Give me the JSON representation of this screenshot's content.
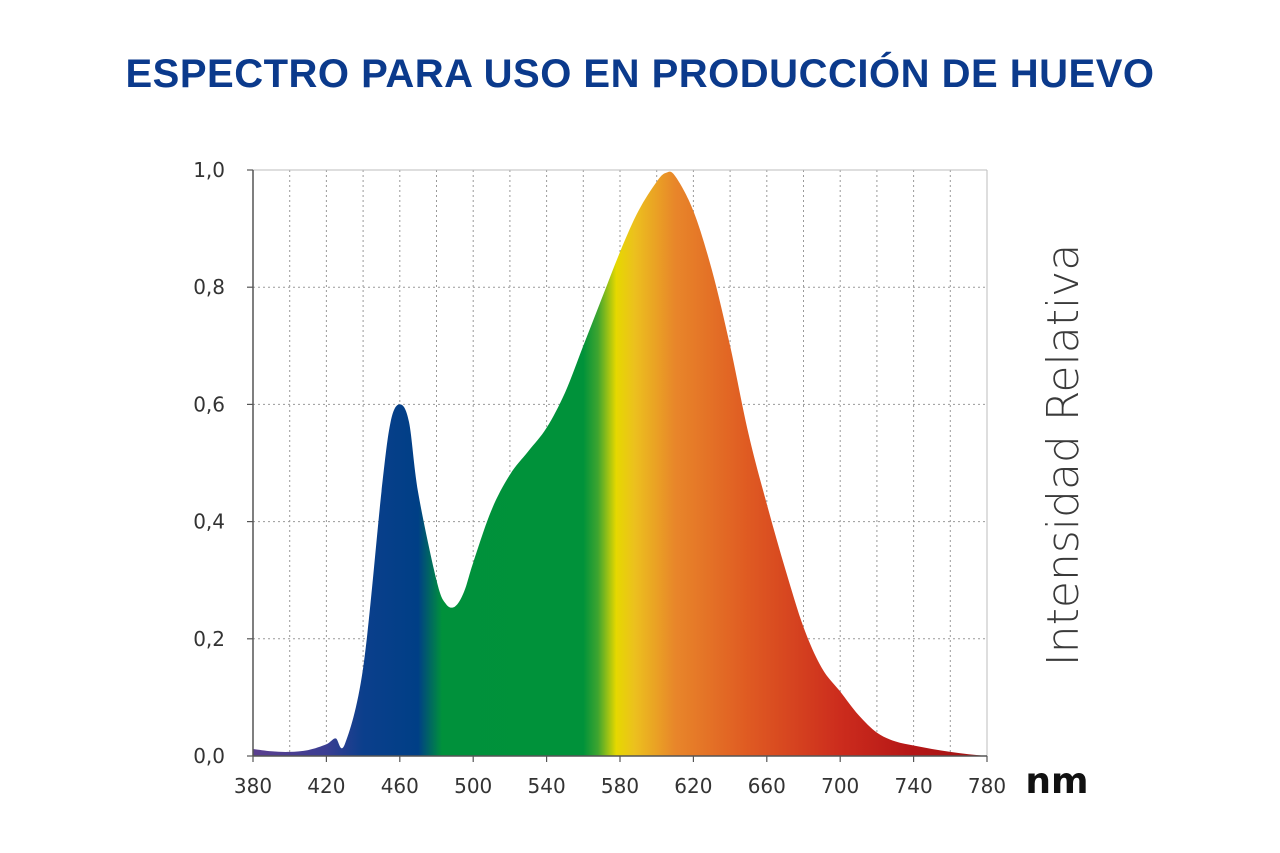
{
  "chart_data": {
    "type": "area",
    "title": "ESPECTRO PARA USO EN PRODUCCIÓN DE HUEVO",
    "xlabel": "nm",
    "ylabel": "Intensidad Relativa",
    "xlim": [
      380,
      780
    ],
    "ylim": [
      0,
      1
    ],
    "x_ticks": [
      "380",
      "420",
      "460",
      "500",
      "540",
      "580",
      "620",
      "660",
      "700",
      "740",
      "780"
    ],
    "y_ticks": [
      "0,0",
      "0,2",
      "0,4",
      "0,6",
      "0,8",
      "1,0"
    ],
    "grid": true,
    "series": [
      {
        "x": [
          380,
          390,
          400,
          410,
          420,
          425,
          430,
          440,
          450,
          455,
          460,
          465,
          470,
          480,
          485,
          490,
          495,
          500,
          510,
          520,
          530,
          540,
          550,
          560,
          570,
          580,
          590,
          600,
          605,
          610,
          620,
          630,
          640,
          650,
          660,
          670,
          680,
          690,
          700,
          710,
          720,
          730,
          740,
          750,
          760,
          770,
          780
        ],
        "values": [
          0.012,
          0.008,
          0.007,
          0.01,
          0.02,
          0.03,
          0.02,
          0.15,
          0.45,
          0.57,
          0.6,
          0.57,
          0.45,
          0.3,
          0.26,
          0.255,
          0.28,
          0.33,
          0.42,
          0.48,
          0.52,
          0.56,
          0.62,
          0.7,
          0.78,
          0.86,
          0.93,
          0.98,
          0.995,
          0.99,
          0.93,
          0.83,
          0.7,
          0.55,
          0.43,
          0.32,
          0.22,
          0.15,
          0.11,
          0.07,
          0.04,
          0.025,
          0.018,
          0.012,
          0.007,
          0.003,
          0.0
        ]
      }
    ],
    "gradient_stops": [
      {
        "nm": 380,
        "color": "#5b3f8f"
      },
      {
        "nm": 420,
        "color": "#3a3e92"
      },
      {
        "nm": 440,
        "color": "#0b3f8c"
      },
      {
        "nm": 470,
        "color": "#003f86"
      },
      {
        "nm": 483,
        "color": "#00913b"
      },
      {
        "nm": 560,
        "color": "#00923a"
      },
      {
        "nm": 568,
        "color": "#3fa52f"
      },
      {
        "nm": 578,
        "color": "#e6d800"
      },
      {
        "nm": 588,
        "color": "#ecc01e"
      },
      {
        "nm": 610,
        "color": "#e8862a"
      },
      {
        "nm": 650,
        "color": "#df5a22"
      },
      {
        "nm": 700,
        "color": "#cc2c1d"
      },
      {
        "nm": 740,
        "color": "#b41616"
      },
      {
        "nm": 780,
        "color": "#a01414"
      }
    ],
    "colors": {
      "title": "#0b3a8c",
      "axis": "#555555",
      "grid": "#9a9a9a"
    }
  }
}
